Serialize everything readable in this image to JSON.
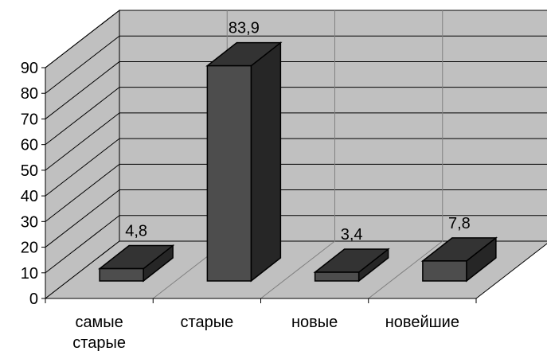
{
  "chart_data": {
    "type": "bar",
    "style": "3d-column",
    "categories": [
      "самые старые",
      "старые",
      "новые",
      "новейшие"
    ],
    "category_lines": [
      [
        "самые",
        "старые"
      ],
      [
        "старые"
      ],
      [
        "новые"
      ],
      [
        "новейшие"
      ]
    ],
    "values": [
      4.8,
      83.9,
      3.4,
      7.8
    ],
    "data_labels": [
      "4,8",
      "83,9",
      "3,4",
      "7,8"
    ],
    "y_ticks": [
      "0",
      "10",
      "20",
      "30",
      "40",
      "50",
      "60",
      "70",
      "80",
      "90"
    ],
    "ylim": [
      0,
      90
    ],
    "title": "",
    "xlabel": "",
    "ylabel": "",
    "grid": true,
    "legend": "none",
    "colors": {
      "bar_front": "#4d4d4d",
      "bar_top": "#333333",
      "bar_side": "#262626",
      "wall": "#c0c0c0",
      "floor": "#c0c0c0",
      "gridline": "#000000"
    }
  }
}
